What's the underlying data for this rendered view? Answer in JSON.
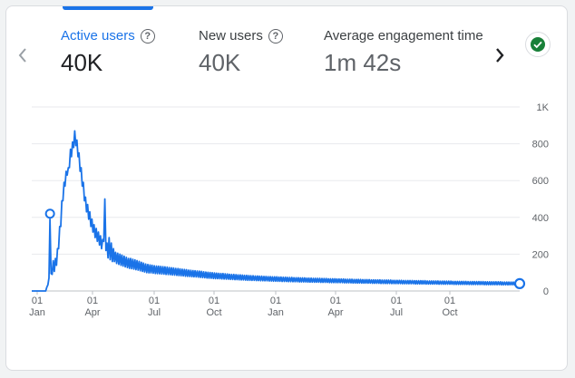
{
  "metrics": [
    {
      "label": "Active users",
      "value": "40K",
      "active": true
    },
    {
      "label": "New users",
      "value": "40K",
      "active": false
    },
    {
      "label": "Average engagement time p",
      "value": "1m 42s",
      "active": false
    }
  ],
  "icons": {
    "prev": "chevron-left-icon",
    "next": "chevron-right-icon",
    "status": "check-circle-icon",
    "help": "help-circle-icon"
  },
  "colors": {
    "accent": "#1a73e8",
    "status_ok": "#188038"
  },
  "chart_data": {
    "type": "line",
    "y_ticks": [
      "1K",
      "800",
      "600",
      "400",
      "200",
      "0"
    ],
    "x_ticks": [
      {
        "day": "01",
        "month": "Jan"
      },
      {
        "day": "01",
        "month": "Apr"
      },
      {
        "day": "01",
        "month": "Jul"
      },
      {
        "day": "01",
        "month": "Oct"
      },
      {
        "day": "01",
        "month": "Jan"
      },
      {
        "day": "01",
        "month": "Apr"
      },
      {
        "day": "01",
        "month": "Jul"
      },
      {
        "day": "01",
        "month": "Oct"
      }
    ],
    "ylim": [
      0,
      1000
    ],
    "grid": true,
    "series": [
      {
        "values": [
          0,
          0,
          0,
          0,
          0,
          0,
          0,
          0,
          0,
          0,
          0,
          0,
          0,
          0,
          20,
          40,
          60,
          420,
          80,
          110,
          140,
          130,
          150,
          170,
          200,
          260,
          320,
          380,
          460,
          520,
          560,
          600,
          620,
          660,
          640,
          700,
          740,
          760,
          780,
          810,
          840,
          820,
          790,
          760,
          720,
          680,
          640,
          600,
          560,
          520,
          480,
          460,
          440,
          420,
          400,
          380,
          360,
          350,
          330,
          320,
          310,
          300,
          290,
          280,
          270,
          260,
          250,
          300,
          470,
          250,
          230,
          210,
          260,
          200,
          230,
          190,
          200,
          190,
          180,
          180,
          175,
          175,
          170,
          170,
          165,
          165,
          160,
          160,
          155,
          155,
          150,
          150,
          150,
          148,
          146,
          145,
          143,
          141,
          140,
          138,
          136,
          134,
          132,
          130,
          128,
          126,
          124,
          122,
          122,
          120,
          120,
          120,
          118,
          118,
          116,
          116,
          115,
          115,
          114,
          114,
          113,
          113,
          112,
          112,
          111,
          110,
          110,
          109,
          108,
          108,
          107,
          106,
          106,
          105,
          104,
          104,
          103,
          102,
          102,
          101,
          100,
          100,
          99,
          98,
          98,
          97,
          96,
          96,
          95,
          95,
          94,
          94,
          93,
          93,
          92,
          92,
          91,
          90,
          90,
          89,
          88,
          88,
          87,
          86,
          86,
          85,
          85,
          84,
          84,
          83,
          83,
          82,
          82,
          82,
          81,
          81,
          80,
          80,
          80,
          79,
          79,
          78,
          78,
          78,
          77,
          77,
          76,
          76,
          76,
          75,
          75,
          75,
          74,
          74,
          74,
          73,
          73,
          73,
          72,
          72,
          72,
          71,
          71,
          71,
          70,
          70,
          70,
          70,
          69,
          69,
          69,
          69,
          68,
          68,
          68,
          68,
          67,
          67,
          67,
          67,
          66,
          66,
          66,
          66,
          65,
          65,
          65,
          65,
          65,
          64,
          64,
          64,
          64,
          63,
          63,
          63,
          63,
          63,
          62,
          62,
          62,
          62,
          62,
          61,
          61,
          61,
          61,
          61,
          61,
          60,
          60,
          60,
          60,
          60,
          60,
          60,
          59,
          59,
          59,
          59,
          59,
          59,
          58,
          58,
          58,
          58,
          58,
          58,
          58,
          57,
          57,
          57,
          57,
          57,
          57,
          57,
          56,
          56,
          56,
          56,
          56,
          56,
          56,
          55,
          55,
          55,
          55,
          55,
          55,
          55,
          55,
          54,
          54,
          54,
          54,
          54,
          54,
          54,
          54,
          53,
          53,
          53,
          53,
          53,
          53,
          53,
          53,
          52,
          52,
          52,
          52,
          52,
          52,
          52,
          52,
          52,
          51,
          51,
          51,
          51,
          51,
          51,
          51,
          51,
          51,
          50,
          50,
          50,
          50,
          50,
          50,
          50,
          50,
          50,
          50,
          49,
          49,
          49,
          49,
          49,
          49,
          49,
          49,
          49,
          49,
          48,
          48,
          48,
          48,
          48,
          48,
          48,
          48,
          48,
          48,
          48,
          47,
          47,
          47,
          47,
          47,
          47,
          47,
          47,
          47,
          47,
          47,
          46,
          46,
          46,
          46,
          46,
          46,
          46,
          46,
          46,
          46,
          46,
          46,
          45,
          45,
          45,
          45,
          45,
          45,
          45,
          45,
          45,
          45,
          45,
          45,
          45,
          44,
          44,
          44,
          44,
          44,
          44,
          44,
          44,
          44,
          44,
          44,
          44,
          44,
          44,
          43,
          43,
          43,
          43,
          43,
          43,
          43,
          43,
          43,
          43,
          43,
          43,
          43,
          43,
          43,
          42,
          42,
          42,
          42,
          42,
          42,
          42,
          42,
          42,
          42,
          42,
          42,
          42,
          42,
          42,
          42,
          41,
          41,
          41,
          41,
          41,
          41,
          41,
          41,
          41,
          41,
          41,
          41,
          41,
          41,
          41,
          41,
          41,
          40
        ]
      }
    ]
  }
}
